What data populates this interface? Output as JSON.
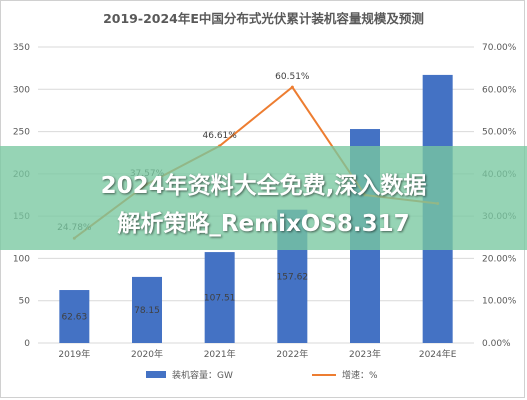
{
  "chart_data": {
    "type": "bar+line",
    "title": "2019-2024年E中国分布式光伏累计装机容量规模及预测",
    "categories": [
      "2019年",
      "2020年",
      "2021年",
      "2022年",
      "2023年",
      "2024年E"
    ],
    "series": [
      {
        "name": "装机容量：GW",
        "type": "bar",
        "axis": "left",
        "color": "#4472c4",
        "values": [
          62.63,
          78.15,
          107.51,
          157.62,
          253.0,
          317.0
        ],
        "labels": [
          "62.63",
          "78.15",
          "107.51",
          "157.62",
          "",
          ""
        ]
      },
      {
        "name": "增速：%",
        "type": "line",
        "axis": "right",
        "color": "#ed7d31",
        "values": [
          24.78,
          37.57,
          46.61,
          60.51,
          35.0,
          33.0
        ],
        "labels": [
          "24.78%",
          "37.57%",
          "46.61%",
          "60.51%",
          "",
          ""
        ]
      }
    ],
    "y_left": {
      "min": 0,
      "max": 350,
      "ticks": [
        "0",
        "50",
        "100",
        "150",
        "200",
        "250",
        "300",
        "350"
      ]
    },
    "y_right": {
      "min": 0,
      "max": 70,
      "ticks": [
        "0.00%",
        "10.00%",
        "20.00%",
        "30.00%",
        "40.00%",
        "50.00%",
        "60.00%",
        "70.00%"
      ]
    },
    "grid": true,
    "legend_position": "bottom"
  },
  "overlay": {
    "line1": "2024年资料大全免费,深入数据",
    "line2": "解析策略_RemixOS8.317"
  },
  "colors": {
    "bar": "#4472c4",
    "line": "#ed7d31",
    "banner": "#78c8a0"
  }
}
